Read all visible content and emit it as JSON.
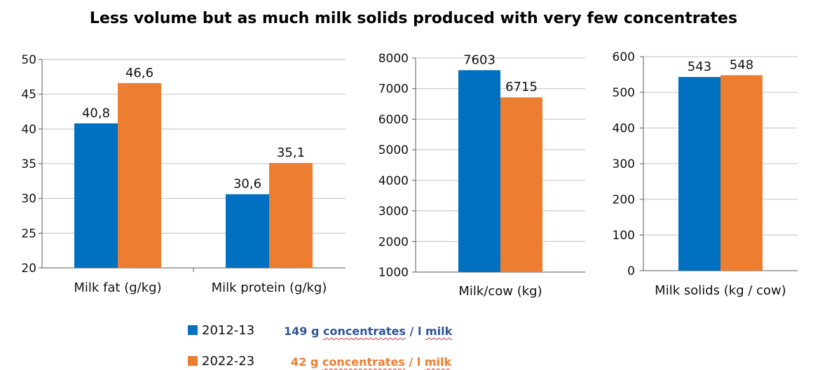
{
  "title": "Less volume but as much milk solids produced with very few concentrates",
  "colors": {
    "series_2012": "#0070c0",
    "series_2022": "#ed7d31",
    "note_2012": "#2f5597",
    "note_2022": "#ed7d31",
    "grid": "#bfbfbf",
    "axis": "#595959"
  },
  "legend": [
    {
      "label": "2012-13",
      "note_pre": "149 g ",
      "note_sq1": "concentrates",
      "note_mid": " / l ",
      "note_sq2": "milk"
    },
    {
      "label": "2022-23",
      "note_pre": "42 g ",
      "note_sq1": "concentrates",
      "note_mid": " / l ",
      "note_sq2": "milk"
    }
  ],
  "chart_data": [
    {
      "type": "bar",
      "categories": [
        "Milk fat (g/kg)",
        "Milk protein (g/kg)"
      ],
      "series": [
        {
          "name": "2012-13",
          "values": [
            40.8,
            30.6
          ]
        },
        {
          "name": "2022-23",
          "values": [
            46.6,
            35.1
          ]
        }
      ],
      "ylim": [
        20,
        50
      ],
      "yticks": [
        20,
        25,
        30,
        35,
        40,
        45,
        50
      ],
      "value_labels": [
        [
          "40,8",
          "30,6"
        ],
        [
          "46,6",
          "35,1"
        ]
      ]
    },
    {
      "type": "bar",
      "categories": [
        "Milk/cow (kg)"
      ],
      "series": [
        {
          "name": "2012-13",
          "values": [
            7603
          ]
        },
        {
          "name": "2022-23",
          "values": [
            6715
          ]
        }
      ],
      "ylim": [
        1000,
        8000
      ],
      "yticks": [
        1000,
        2000,
        3000,
        4000,
        5000,
        6000,
        7000,
        8000
      ],
      "value_labels": [
        [
          "7603"
        ],
        [
          "6715"
        ]
      ]
    },
    {
      "type": "bar",
      "categories": [
        "Milk solids (kg / cow)"
      ],
      "series": [
        {
          "name": "2012-13",
          "values": [
            543
          ]
        },
        {
          "name": "2022-23",
          "values": [
            548
          ]
        }
      ],
      "ylim": [
        0,
        600
      ],
      "yticks": [
        0,
        100,
        200,
        300,
        400,
        500,
        600
      ],
      "value_labels": [
        [
          "543"
        ],
        [
          "548"
        ]
      ]
    }
  ]
}
